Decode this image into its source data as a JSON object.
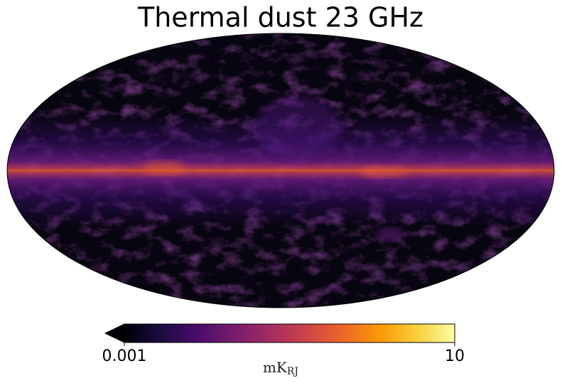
{
  "title": "Thermal dust 23 GHz",
  "colorbar": {
    "colormap": "inferno",
    "scale": "log",
    "lim": [
      0.001,
      10
    ],
    "ticks": [
      0.001,
      10
    ],
    "extend": "min",
    "label": "mK",
    "label_subscript": "RJ"
  }
}
